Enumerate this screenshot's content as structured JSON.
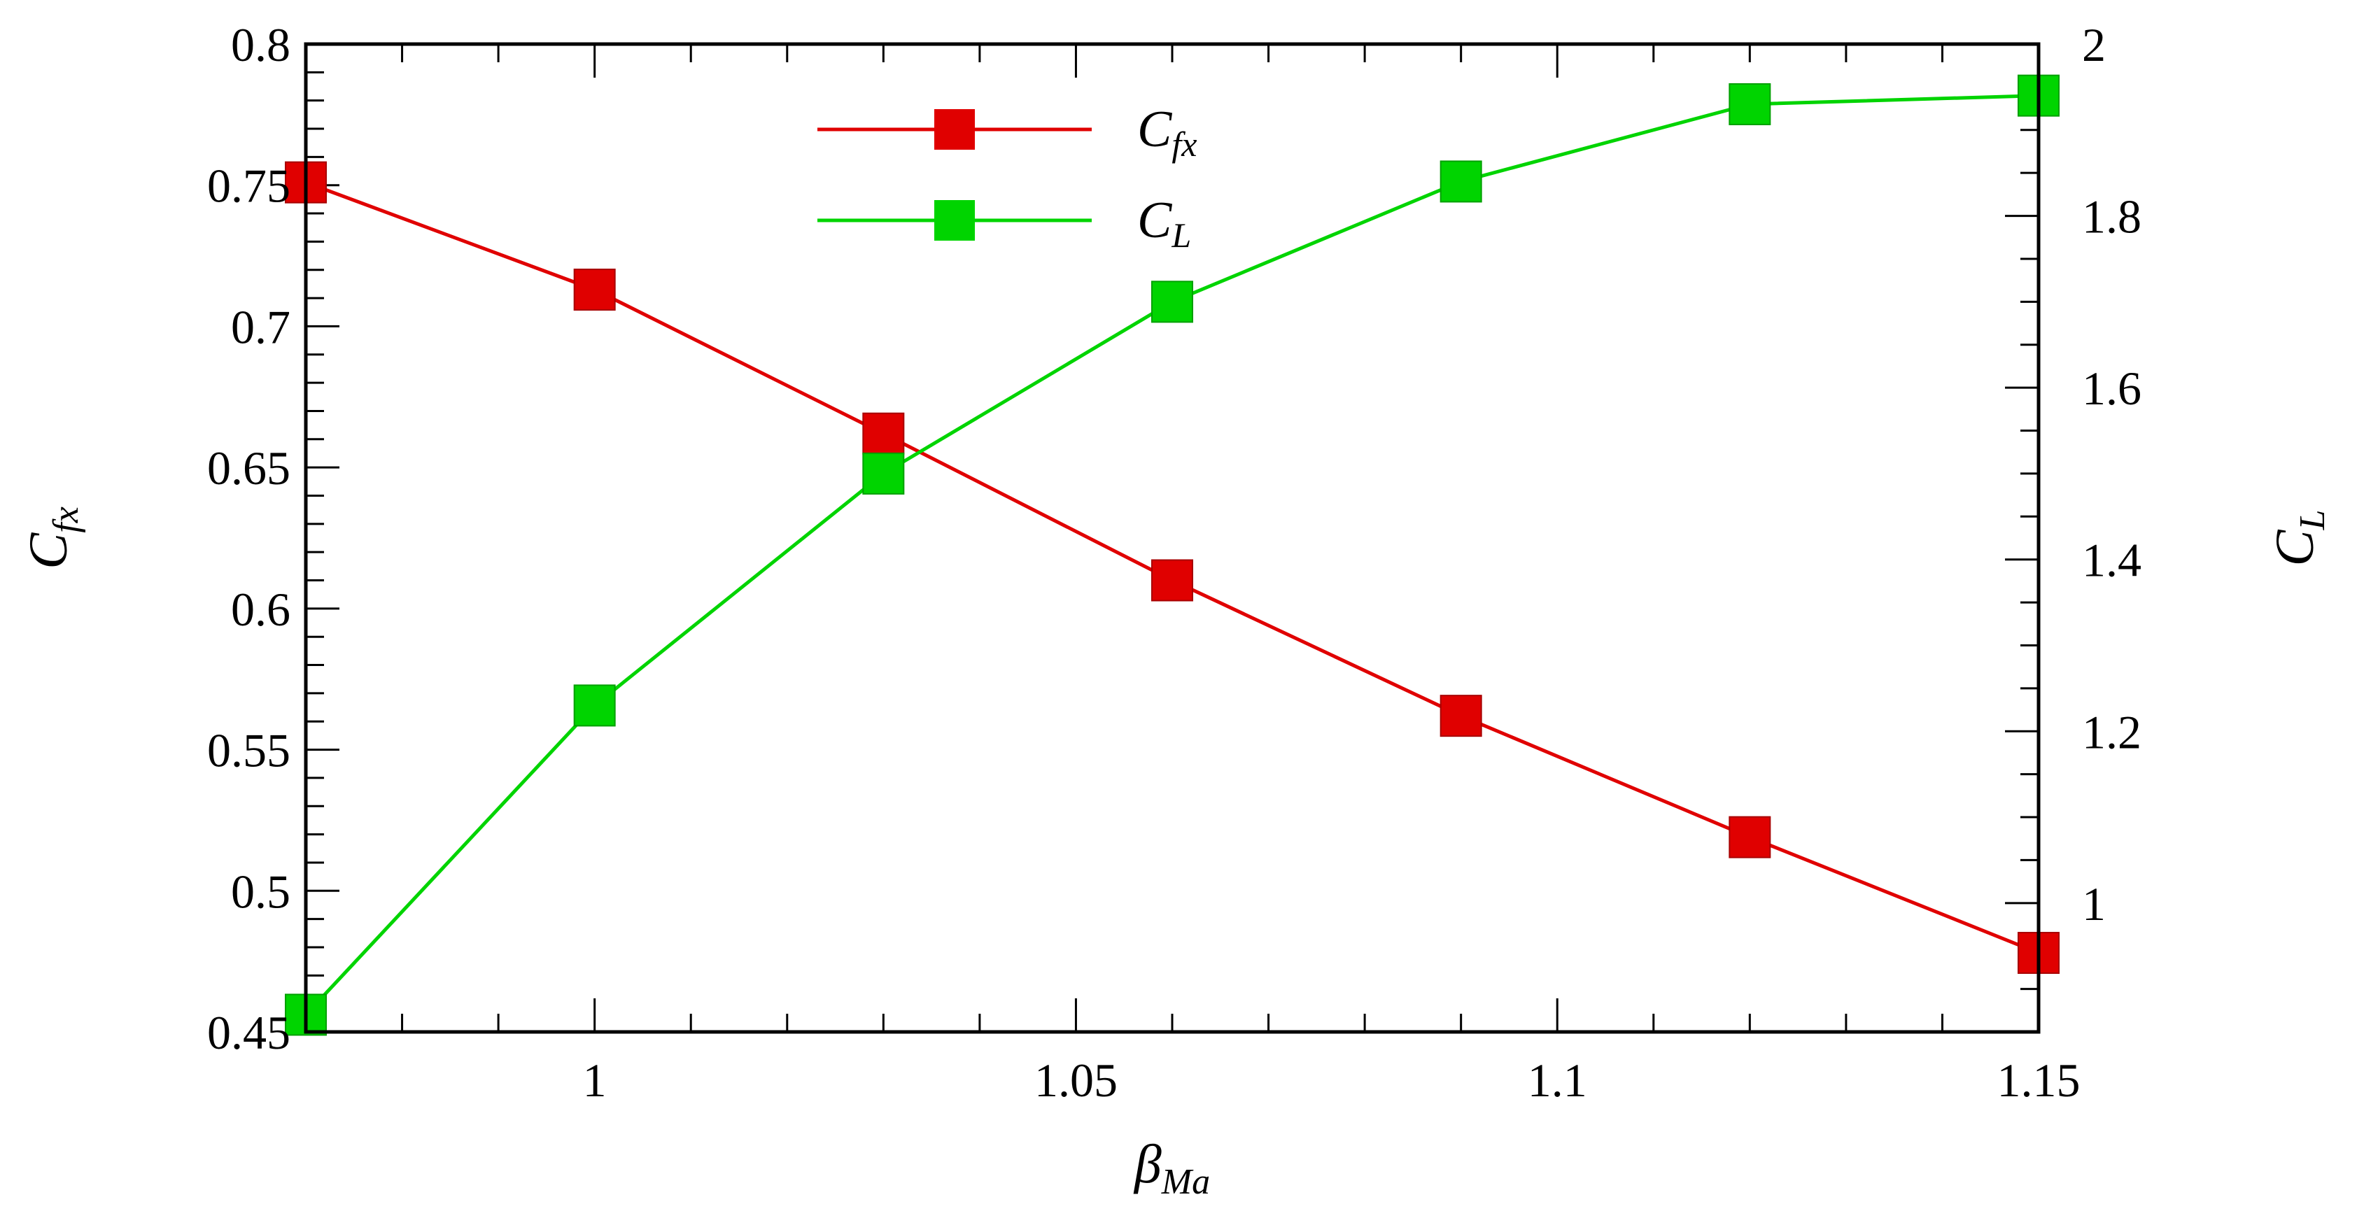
{
  "chart_data": {
    "type": "line",
    "title": "",
    "x": [
      0.97,
      1.0,
      1.03,
      1.06,
      1.09,
      1.12,
      1.15
    ],
    "xlabel": {
      "main": "β",
      "sub": "Ma"
    },
    "ylabel": {
      "main": "C",
      "sub": "fx"
    },
    "y2label": {
      "main": "C",
      "sub": "L"
    },
    "xlim": [
      0.97,
      1.15
    ],
    "ylim": [
      0.45,
      0.8
    ],
    "y2lim": [
      0.85,
      2.0
    ],
    "x_ticks": [
      "1",
      "1.05",
      "1.1",
      "1.15"
    ],
    "y_ticks": [
      "0.45",
      "0.5",
      "0.55",
      "0.6",
      "0.65",
      "0.7",
      "0.75",
      "0.8"
    ],
    "y2_ticks": [
      "1",
      "1.2",
      "1.4",
      "1.6",
      "1.8",
      "2"
    ],
    "grid": false,
    "legend_position": "top-center",
    "series": [
      {
        "name": "C_fx",
        "label_main": "C",
        "label_sub": "fx",
        "axis": "left",
        "color": "#e00000",
        "marker": "square",
        "values": [
          0.751,
          0.713,
          0.662,
          0.61,
          0.562,
          0.519,
          0.478
        ]
      },
      {
        "name": "C_L",
        "label_main": "C",
        "label_sub": "L",
        "axis": "right",
        "color": "#00d400",
        "marker": "square",
        "values": [
          0.87,
          1.23,
          1.5,
          1.7,
          1.84,
          1.93,
          1.94
        ]
      }
    ]
  }
}
